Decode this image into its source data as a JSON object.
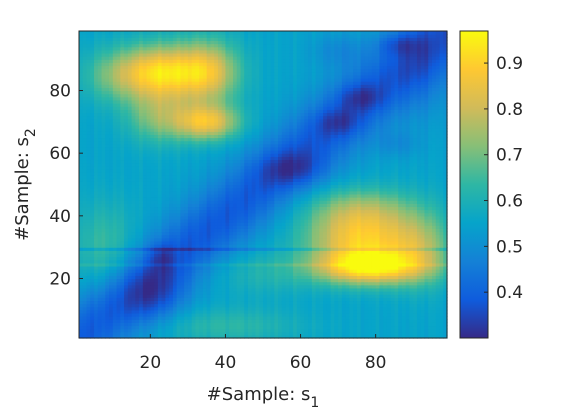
{
  "chart_data": {
    "type": "heatmap",
    "title": "",
    "xlabel": {
      "base": "#Sample: s",
      "sub": "1"
    },
    "ylabel": {
      "base": "#Sample: s",
      "sub": "2"
    },
    "xlim": [
      1,
      99
    ],
    "ylim": [
      1,
      99
    ],
    "x_ticks": [
      20,
      40,
      60,
      80
    ],
    "y_ticks": [
      20,
      40,
      60,
      80
    ],
    "colorbar": {
      "range": [
        0.3,
        0.97
      ],
      "ticks": [
        0.4,
        0.5,
        0.6,
        0.7,
        0.8,
        0.9
      ],
      "tick_labels": [
        "0.4",
        "0.5",
        "0.6",
        "0.7",
        "0.8",
        "0.9"
      ],
      "colormap": "parula",
      "colors": [
        "#352a87",
        "#0f5cdd",
        "#1481d6",
        "#06a4ca",
        "#2eb7a4",
        "#87bf77",
        "#d1bb59",
        "#fec832",
        "#f9fb0e"
      ]
    },
    "base_value": 0.55,
    "regions": [
      {
        "label": "diagonal low band",
        "center": [
          50,
          50
        ],
        "value": 0.36
      },
      {
        "label": "low pocket near s1=22,s2=15",
        "center": [
          21,
          15
        ],
        "value": 0.32
      },
      {
        "label": "low pocket near s1=58,s2=55",
        "center": [
          58,
          55
        ],
        "value": 0.33
      },
      {
        "label": "low pocket near s1=76,s2=78",
        "center": [
          76,
          78
        ],
        "value": 0.34
      },
      {
        "label": "low pocket near s1=86,s2=95",
        "center": [
          86,
          95
        ],
        "value": 0.35
      },
      {
        "label": "low pocket near s1=70,s2=93",
        "center": [
          70,
          93
        ],
        "value": 0.36
      },
      {
        "label": "high block upper-left",
        "center": [
          22,
          85
        ],
        "value": 0.88
      },
      {
        "label": "high block upper-left 2",
        "center": [
          35,
          72
        ],
        "value": 0.86
      },
      {
        "label": "high block lower-right",
        "center": [
          77,
          24
        ],
        "value": 0.95
      },
      {
        "label": "high band lower-right",
        "center": [
          75,
          35
        ],
        "value": 0.78
      },
      {
        "label": "mid band lower-left",
        "center": [
          8,
          30
        ],
        "value": 0.66
      }
    ],
    "grid": false,
    "legend": "none"
  }
}
